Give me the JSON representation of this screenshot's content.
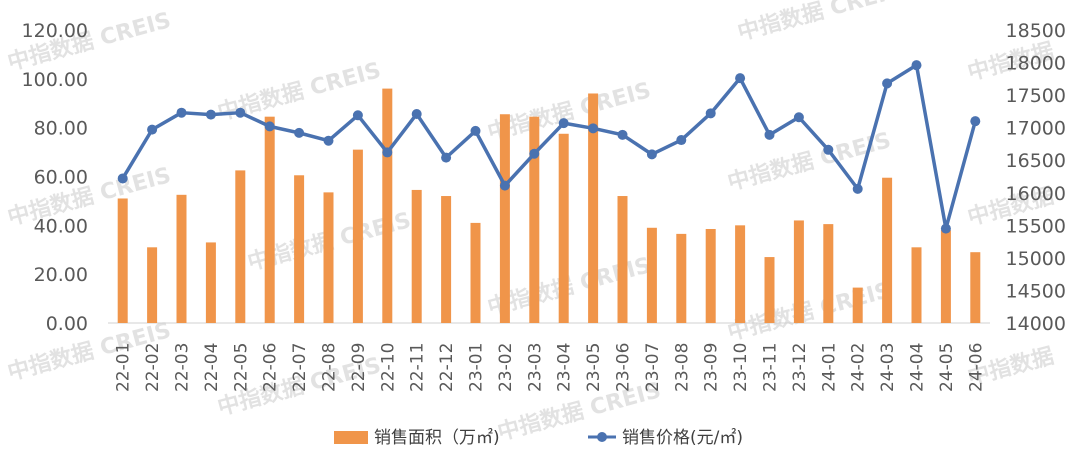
{
  "watermark": "中指数据 CREIS",
  "watermark_short": "中指数据",
  "chart_data": {
    "type": "bar+line",
    "categories": [
      "22-01",
      "22-02",
      "22-03",
      "22-04",
      "22-05",
      "22-06",
      "22-07",
      "22-08",
      "22-09",
      "22-10",
      "22-11",
      "22-12",
      "23-01",
      "23-02",
      "23-03",
      "23-04",
      "23-05",
      "23-06",
      "23-07",
      "23-08",
      "23-09",
      "23-10",
      "23-11",
      "23-12",
      "24-01",
      "24-02",
      "24-03",
      "24-04",
      "24-05",
      "24-06"
    ],
    "series": [
      {
        "name": "销售面积（万㎡)",
        "type": "bar",
        "axis": "left",
        "color": "#f0954a",
        "values": [
          51,
          31,
          52.5,
          33,
          62.5,
          84.5,
          60.5,
          53.5,
          71,
          96,
          54.5,
          52,
          41,
          85.5,
          84.5,
          77.5,
          94,
          52,
          39,
          36.5,
          38.5,
          40,
          27,
          42,
          40.5,
          14.5,
          59.5,
          31,
          38,
          29
        ]
      },
      {
        "name": "销售价格(元/㎡)",
        "type": "line",
        "axis": "right",
        "color": "#4a72b0",
        "values": [
          16220,
          16970,
          17230,
          17200,
          17230,
          17020,
          16920,
          16800,
          17190,
          16620,
          17210,
          16540,
          16950,
          16110,
          16600,
          17070,
          16990,
          16890,
          16590,
          16810,
          17220,
          17760,
          16890,
          17160,
          16660,
          16060,
          17680,
          17960,
          15450,
          17100
        ]
      }
    ],
    "y_left": {
      "min": 0,
      "max": 120,
      "step": 20,
      "tick_labels": [
        "0.00",
        "20.00",
        "40.00",
        "60.00",
        "80.00",
        "100.00",
        "120.00"
      ]
    },
    "y_right": {
      "min": 14000,
      "max": 18500,
      "step": 500,
      "tick_labels": [
        "14000",
        "14500",
        "15000",
        "15500",
        "16000",
        "16500",
        "17000",
        "17500",
        "18000",
        "18500"
      ]
    },
    "grid": false,
    "legend_position": "bottom"
  }
}
